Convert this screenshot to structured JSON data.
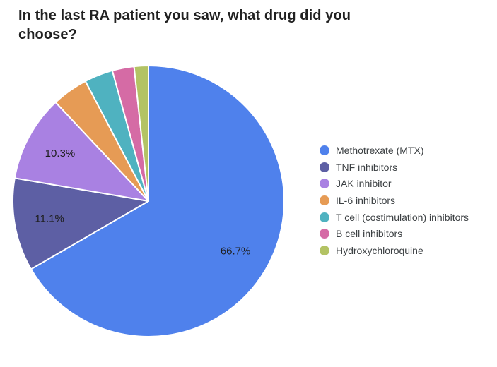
{
  "chart_data": {
    "type": "pie",
    "title": "In the last RA patient you saw, what drug did you choose?",
    "categories": [
      "Methotrexate (MTX)",
      "TNF inhibitors",
      "JAK inhibitor",
      "IL-6 inhibitors",
      "T cell (costimulation) inhibitors",
      "B cell inhibitors",
      "Hydroxychloroquine"
    ],
    "values": [
      66.7,
      11.1,
      10.3,
      4.3,
      3.4,
      2.6,
      1.7
    ],
    "slice_labels": [
      "66.7%",
      "11.1%",
      "10.3%",
      "",
      "",
      "",
      ""
    ],
    "colors": [
      "#4f81ec",
      "#5d5fa4",
      "#a981e2",
      "#e69b55",
      "#4fb2c0",
      "#d56ba5",
      "#b3c364"
    ],
    "legend_position": "right",
    "start_angle_deg": 0,
    "direction": "clockwise",
    "background_color": "#ffffff",
    "title_color": "#212121",
    "percent_label_color": "#1e1e1e",
    "legend_text_color": "#3c4043",
    "slice_border_color": "#ffffff"
  }
}
